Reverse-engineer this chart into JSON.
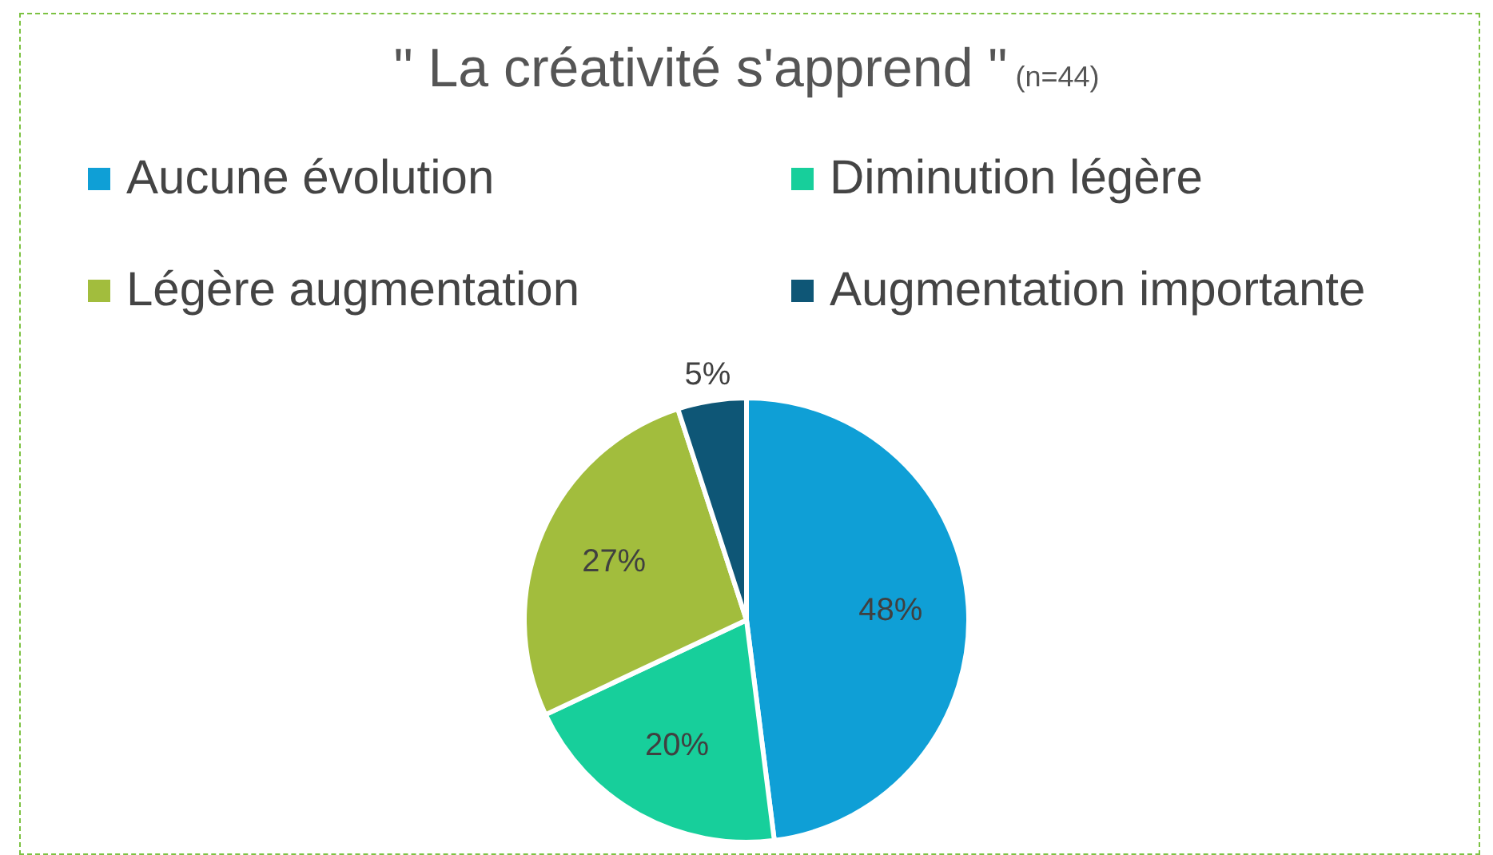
{
  "chart_data": {
    "type": "pie",
    "title": "\" La créativité s'apprend \"",
    "subtitle": "(n=44)",
    "categories": [
      "Aucune évolution",
      "Diminution légère",
      "Légère augmentation",
      "Augmentation importante"
    ],
    "values": [
      48,
      20,
      27,
      5
    ],
    "colors": [
      "#0f9fd6",
      "#17cf9b",
      "#a2bd3d",
      "#0e5676"
    ],
    "value_labels": [
      "48%",
      "20%",
      "27%",
      "5%"
    ],
    "legend": "top"
  }
}
